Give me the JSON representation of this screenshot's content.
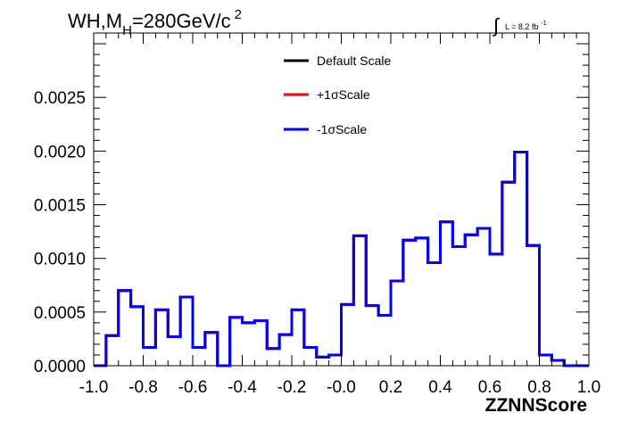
{
  "chart_data": {
    "type": "line",
    "title_main": "WH,M",
    "title_sub": "H",
    "title_rest": "=280GeV/c",
    "title_sup": "2",
    "lumi_symbol": "∫",
    "lumi_text": "L = 8.2 fb",
    "lumi_sup": "-1",
    "xlabel": "ZZNNScore",
    "ylabel": "",
    "xlim": [
      -1.0,
      1.0
    ],
    "ylim": [
      0,
      0.0031
    ],
    "x_ticks": [
      "-1.0",
      "-0.8",
      "-0.6",
      "-0.4",
      "-0.2",
      "-0.0",
      "0.2",
      "0.4",
      "0.6",
      "0.8",
      "1.0"
    ],
    "x_tick_values": [
      -1.0,
      -0.8,
      -0.6,
      -0.4,
      -0.2,
      0.0,
      0.2,
      0.4,
      0.6,
      0.8,
      1.0
    ],
    "y_ticks": [
      "0.0000",
      "0.0005",
      "0.0010",
      "0.0015",
      "0.0020",
      "0.0025"
    ],
    "y_tick_values": [
      0,
      0.0005,
      0.001,
      0.0015,
      0.002,
      0.0025
    ],
    "bin_width": 0.05,
    "bin_edges_start": -1.0,
    "series": [
      {
        "name": "Default Scale",
        "color": "#000000",
        "values": [
          0.0,
          0.00028,
          0.0007,
          0.00055,
          0.00017,
          0.00052,
          0.00027,
          0.00064,
          0.00017,
          0.00031,
          0.0,
          0.00045,
          0.0004,
          0.00042,
          0.00016,
          0.00029,
          0.00052,
          0.00017,
          8e-05,
          0.0001,
          0.00057,
          0.00121,
          0.00056,
          0.00047,
          0.00079,
          0.00117,
          0.00119,
          0.00096,
          0.00134,
          0.00111,
          0.00122,
          0.00128,
          0.00104,
          0.00171,
          0.00199,
          0.00112,
          0.0001,
          5e-05,
          0.0,
          0.0
        ]
      },
      {
        "name": "+1σScale",
        "color": "#ff0000",
        "values": [
          0.0,
          0.00028,
          0.0007,
          0.00055,
          0.00017,
          0.00052,
          0.00027,
          0.00064,
          0.00017,
          0.00031,
          0.0,
          0.00045,
          0.0004,
          0.00042,
          0.00016,
          0.00029,
          0.00052,
          0.00017,
          8e-05,
          0.0001,
          0.00057,
          0.00121,
          0.00056,
          0.00047,
          0.00079,
          0.00117,
          0.00119,
          0.00096,
          0.00134,
          0.00111,
          0.00122,
          0.00128,
          0.00104,
          0.00171,
          0.00199,
          0.00112,
          0.0001,
          5e-05,
          0.0,
          0.0
        ]
      },
      {
        "name": "-1σScale",
        "color": "#0000ff",
        "values": [
          0.0,
          0.00028,
          0.0007,
          0.00055,
          0.00017,
          0.00052,
          0.00027,
          0.00064,
          0.00017,
          0.00031,
          0.0,
          0.00045,
          0.0004,
          0.00042,
          0.00016,
          0.00029,
          0.00052,
          0.00017,
          8e-05,
          0.0001,
          0.00057,
          0.00121,
          0.00056,
          0.00047,
          0.00079,
          0.00117,
          0.00119,
          0.00096,
          0.00134,
          0.00111,
          0.00122,
          0.00128,
          0.00104,
          0.00171,
          0.00199,
          0.00112,
          0.0001,
          5e-05,
          0.0,
          0.0
        ]
      }
    ],
    "legend": [
      {
        "label": "Default Scale",
        "color": "#000000"
      },
      {
        "label": "+1σScale",
        "color": "#ff0000"
      },
      {
        "label": "-1σScale",
        "color": "#0000ff"
      }
    ],
    "grid": false,
    "legend_position": "top-center"
  }
}
